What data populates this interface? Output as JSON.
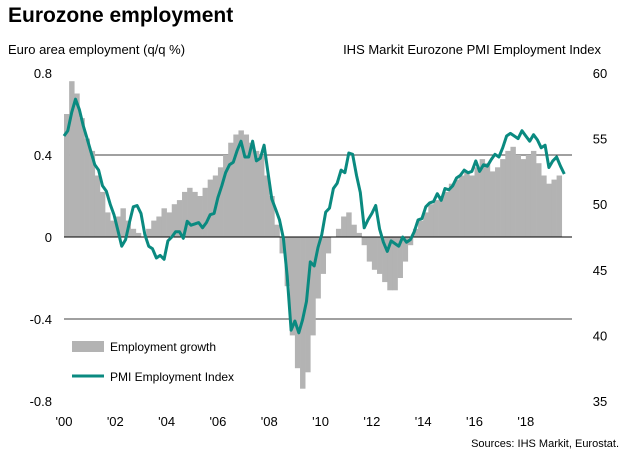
{
  "header": {
    "title": "Eurozone employment",
    "left_axis_label": "Euro area employment (q/q %)",
    "right_axis_label": "IHS Markit  Eurozone PMI Employment Index",
    "source": "Sources: IHS Markit, Eurostat."
  },
  "colors": {
    "bars": "#b3b3b3",
    "line": "#0a8a80",
    "grid": "#000000"
  },
  "chart_data": {
    "type": "bar+line",
    "x_start": 2000.0,
    "x_end": 2019.6,
    "xlim": [
      2000,
      2019.8
    ],
    "x_tick_labels": [
      "'00",
      "'02",
      "'04",
      "'06",
      "'08",
      "'10",
      "'12",
      "'14",
      "'16",
      "'18"
    ],
    "x_tick_values": [
      2000,
      2002,
      2004,
      2006,
      2008,
      2010,
      2012,
      2014,
      2016,
      2018
    ],
    "left_axis": {
      "label": "Euro area employment (q/q %)",
      "ylim": [
        -0.8,
        0.8
      ],
      "ticks": [
        0.8,
        0.4,
        0,
        -0.4,
        -0.8
      ],
      "tick_labels": [
        "0.8",
        "0.4",
        "0",
        "-0.4",
        "-0.8"
      ]
    },
    "right_axis": {
      "label": "IHS Markit  Eurozone PMI Employment Index",
      "ylim": [
        35,
        60
      ],
      "ticks": [
        60,
        55,
        50,
        45,
        40,
        35
      ],
      "tick_labels": [
        "60",
        "55",
        "50",
        "45",
        "40",
        "35"
      ]
    },
    "gridlines": [
      0.4,
      -0.4
    ],
    "legend": {
      "position": "bottom-left",
      "entries": [
        "Employment growth",
        "PMI Employment Index"
      ]
    },
    "series": [
      {
        "name": "Employment growth",
        "kind": "bar",
        "axis": "left",
        "x": [
          2000.0,
          2000.2,
          2000.4,
          2000.6,
          2000.8,
          2001.0,
          2001.2,
          2001.4,
          2001.6,
          2001.8,
          2002.0,
          2002.2,
          2002.4,
          2002.6,
          2002.8,
          2003.0,
          2003.2,
          2003.4,
          2003.6,
          2003.8,
          2004.0,
          2004.2,
          2004.4,
          2004.6,
          2004.8,
          2005.0,
          2005.2,
          2005.4,
          2005.6,
          2005.8,
          2006.0,
          2006.2,
          2006.4,
          2006.6,
          2006.8,
          2007.0,
          2007.2,
          2007.4,
          2007.6,
          2007.8,
          2008.0,
          2008.2,
          2008.4,
          2008.6,
          2008.8,
          2009.0,
          2009.2,
          2009.4,
          2009.6,
          2009.8,
          2010.0,
          2010.2,
          2010.4,
          2010.6,
          2010.8,
          2011.0,
          2011.2,
          2011.4,
          2011.6,
          2011.8,
          2012.0,
          2012.2,
          2012.4,
          2012.6,
          2012.8,
          2013.0,
          2013.2,
          2013.4,
          2013.6,
          2013.8,
          2014.0,
          2014.2,
          2014.4,
          2014.6,
          2014.8,
          2015.0,
          2015.2,
          2015.4,
          2015.6,
          2015.8,
          2016.0,
          2016.2,
          2016.4,
          2016.6,
          2016.8,
          2017.0,
          2017.2,
          2017.4,
          2017.6,
          2017.8,
          2018.0,
          2018.2,
          2018.4,
          2018.6,
          2018.8,
          2019.0,
          2019.2
        ],
        "values": [
          0.6,
          0.76,
          0.7,
          0.58,
          0.48,
          0.42,
          0.3,
          0.22,
          0.12,
          0.08,
          0.1,
          0.14,
          0.08,
          0.04,
          0.02,
          0.0,
          0.04,
          0.08,
          0.1,
          0.14,
          0.12,
          0.16,
          0.18,
          0.22,
          0.24,
          0.22,
          0.2,
          0.24,
          0.28,
          0.3,
          0.34,
          0.4,
          0.46,
          0.5,
          0.52,
          0.5,
          0.46,
          0.42,
          0.4,
          0.3,
          0.2,
          0.06,
          -0.08,
          -0.24,
          -0.48,
          -0.64,
          -0.74,
          -0.66,
          -0.48,
          -0.3,
          -0.18,
          -0.08,
          0.0,
          0.04,
          0.1,
          0.12,
          0.06,
          0.02,
          -0.04,
          -0.12,
          -0.16,
          -0.18,
          -0.22,
          -0.26,
          -0.26,
          -0.2,
          -0.12,
          -0.04,
          0.04,
          0.08,
          0.12,
          0.16,
          0.18,
          0.2,
          0.22,
          0.26,
          0.28,
          0.3,
          0.32,
          0.3,
          0.34,
          0.38,
          0.36,
          0.32,
          0.34,
          0.38,
          0.42,
          0.44,
          0.4,
          0.38,
          0.4,
          0.42,
          0.36,
          0.3,
          0.26,
          0.28,
          0.3
        ]
      },
      {
        "name": "PMI Employment Index",
        "kind": "line",
        "axis": "right",
        "x": [
          2000.0,
          2000.15,
          2000.3,
          2000.45,
          2000.6,
          2000.75,
          2000.9,
          2001.05,
          2001.2,
          2001.35,
          2001.5,
          2001.65,
          2001.8,
          2001.95,
          2002.1,
          2002.25,
          2002.4,
          2002.55,
          2002.7,
          2002.85,
          2003.0,
          2003.15,
          2003.3,
          2003.45,
          2003.6,
          2003.75,
          2003.9,
          2004.05,
          2004.2,
          2004.35,
          2004.5,
          2004.65,
          2004.8,
          2004.95,
          2005.1,
          2005.25,
          2005.4,
          2005.55,
          2005.7,
          2005.85,
          2006.0,
          2006.15,
          2006.3,
          2006.45,
          2006.6,
          2006.75,
          2006.9,
          2007.05,
          2007.2,
          2007.35,
          2007.5,
          2007.65,
          2007.8,
          2007.95,
          2008.1,
          2008.25,
          2008.4,
          2008.55,
          2008.7,
          2008.85,
          2009.0,
          2009.15,
          2009.3,
          2009.45,
          2009.6,
          2009.75,
          2009.9,
          2010.05,
          2010.2,
          2010.35,
          2010.5,
          2010.65,
          2010.8,
          2010.95,
          2011.1,
          2011.25,
          2011.4,
          2011.55,
          2011.7,
          2011.85,
          2012.0,
          2012.15,
          2012.3,
          2012.45,
          2012.6,
          2012.75,
          2012.9,
          2013.05,
          2013.2,
          2013.35,
          2013.5,
          2013.65,
          2013.8,
          2013.95,
          2014.1,
          2014.25,
          2014.4,
          2014.55,
          2014.7,
          2014.85,
          2015.0,
          2015.15,
          2015.3,
          2015.45,
          2015.6,
          2015.75,
          2015.9,
          2016.05,
          2016.2,
          2016.35,
          2016.5,
          2016.65,
          2016.8,
          2016.95,
          2017.1,
          2017.25,
          2017.4,
          2017.55,
          2017.7,
          2017.85,
          2018.0,
          2018.15,
          2018.3,
          2018.45,
          2018.6,
          2018.75,
          2018.9,
          2019.05,
          2019.2,
          2019.35,
          2019.5
        ],
        "values": [
          55.2,
          55.6,
          57.0,
          58.0,
          57.2,
          56.0,
          55.0,
          54.0,
          53.0,
          52.6,
          51.4,
          51.0,
          50.0,
          49.2,
          48.0,
          46.8,
          47.3,
          48.6,
          49.8,
          49.9,
          49.3,
          47.7,
          46.8,
          46.6,
          45.9,
          46.1,
          45.8,
          47.2,
          47.5,
          47.9,
          47.9,
          47.4,
          48.7,
          48.4,
          48.5,
          48.6,
          48.2,
          48.6,
          49.2,
          49.3,
          50.5,
          51.4,
          52.4,
          53.0,
          53.2,
          54.1,
          54.8,
          53.6,
          53.6,
          54.8,
          53.3,
          53.5,
          54.5,
          52.4,
          50.4,
          49.6,
          48.8,
          47.4,
          44.5,
          40.4,
          41.1,
          40.2,
          41.2,
          42.6,
          45.6,
          45.3,
          46.7,
          47.7,
          49.4,
          49.7,
          51.2,
          51.6,
          52.6,
          52.4,
          53.9,
          53.8,
          52.2,
          50.9,
          48.2,
          48.8,
          49.3,
          49.9,
          48.1,
          47.1,
          46.4,
          47.2,
          47.0,
          46.8,
          47.5,
          47.1,
          47.3,
          47.9,
          48.8,
          48.9,
          49.8,
          50.1,
          50.2,
          50.8,
          50.3,
          51.2,
          51.1,
          51.4,
          52.0,
          52.2,
          52.6,
          52.4,
          52.5,
          53.3,
          52.5,
          53.0,
          52.9,
          53.4,
          53.8,
          53.6,
          54.3,
          55.2,
          55.4,
          55.2,
          55.0,
          55.6,
          55.2,
          54.8,
          55.3,
          54.9,
          54.3,
          54.5,
          52.8,
          53.3,
          53.6,
          52.9,
          52.3
        ]
      }
    ]
  }
}
